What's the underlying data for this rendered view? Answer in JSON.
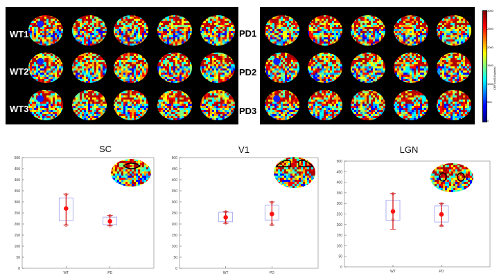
{
  "panels": [
    {
      "labels": [
        "WT1",
        "WT2",
        "WT3"
      ]
    },
    {
      "labels": [
        "PD1",
        "PD2",
        "PD3"
      ]
    }
  ],
  "colorbar": {
    "ticks": [
      "3000",
      "2500",
      "2000",
      "1500",
      "1000",
      "500",
      "0"
    ],
    "label": "CBF (ml/100g/min)",
    "colors": [
      "#00007f",
      "#0000ff",
      "#00ffff",
      "#ffff00",
      "#ff0000",
      "#7f0000"
    ]
  },
  "chart_data": [
    {
      "type": "box",
      "title": "SC",
      "categories": [
        "WT",
        "PD"
      ],
      "ylim": [
        0,
        500
      ],
      "yticks": [
        0,
        50,
        100,
        150,
        200,
        250,
        300,
        350,
        400,
        450,
        500
      ],
      "series": [
        {
          "category": "WT",
          "q1": 215,
          "q3": 318,
          "mean": 270,
          "lower": 195,
          "upper": 335,
          "points": [
            333,
            195
          ]
        },
        {
          "category": "PD",
          "q1": 197,
          "q3": 231,
          "mean": 212,
          "lower": 192,
          "upper": 239,
          "points": [
            237,
            192
          ]
        }
      ]
    },
    {
      "type": "box",
      "title": "V1",
      "categories": [
        "WT",
        "PD"
      ],
      "ylim": [
        0,
        500
      ],
      "yticks": [
        0,
        50,
        100,
        150,
        200,
        250,
        300,
        350,
        400,
        450,
        500
      ],
      "series": [
        {
          "category": "WT",
          "q1": 210,
          "q3": 253,
          "mean": 230,
          "lower": 203,
          "upper": 257,
          "points": [
            255,
            205
          ]
        },
        {
          "category": "PD",
          "q1": 218,
          "q3": 285,
          "mean": 245,
          "lower": 195,
          "upper": 300,
          "points": [
            298,
            197
          ]
        }
      ]
    },
    {
      "type": "box",
      "title": "LGN",
      "categories": [
        "WT",
        "PD"
      ],
      "ylim": [
        0,
        500
      ],
      "yticks": [
        0,
        50,
        100,
        150,
        200,
        250,
        300,
        350,
        400,
        450,
        500
      ],
      "series": [
        {
          "category": "WT",
          "q1": 220,
          "q3": 315,
          "mean": 262,
          "lower": 178,
          "upper": 348,
          "points": [
            345,
            222
          ]
        },
        {
          "category": "PD",
          "q1": 212,
          "q3": 288,
          "mean": 248,
          "lower": 193,
          "upper": 300,
          "points": [
            298,
            195
          ]
        }
      ]
    }
  ]
}
